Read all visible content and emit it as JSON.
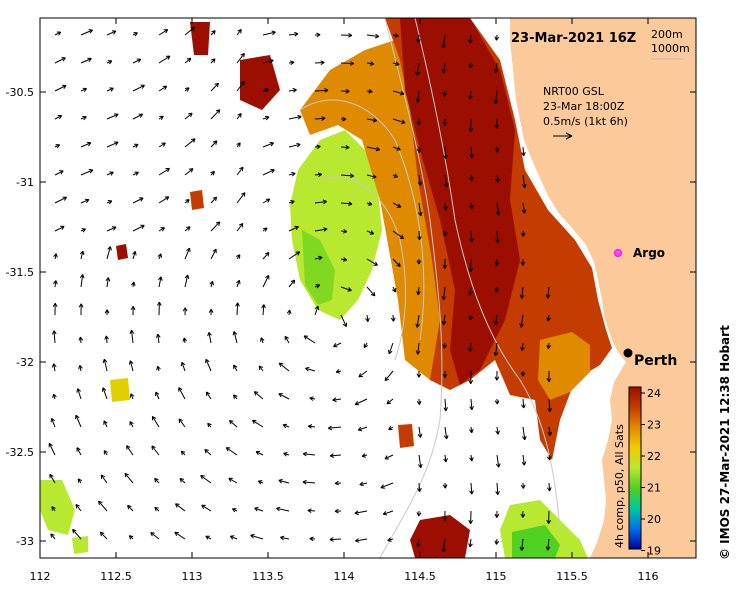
{
  "map": {
    "timestamp": "23-Mar-2021 16Z",
    "bathymetry_legend": [
      "200m",
      "1000m"
    ],
    "current_info": {
      "source": "NRT00 GSL",
      "time": "23-Mar 18:00Z",
      "scale": "0.5m/s (1kt 6h)"
    },
    "x_ticks": [
      "112",
      "112.5",
      "113",
      "113.5",
      "114",
      "114.5",
      "115",
      "115.5",
      "116"
    ],
    "y_ticks": [
      "-30.5",
      "-31",
      "-31.5",
      "-32",
      "-32.5",
      "-33"
    ],
    "places": [
      {
        "name": "Argo",
        "marker": "argo-float",
        "lon": 115.8,
        "lat": -31.4
      },
      {
        "name": "Perth",
        "marker": "city-dot",
        "lon": 115.86,
        "lat": -31.95
      }
    ],
    "colorbar": {
      "label": "4h comp, p50, All Sats",
      "ticks": [
        "24",
        "23",
        "22",
        "21",
        "20",
        "19"
      ],
      "colors": [
        "#9b0e00",
        "#c43c00",
        "#e08a00",
        "#f0cc00",
        "#b8e830",
        "#50d020",
        "#00c8a0",
        "#0070e8",
        "#0000a0"
      ]
    },
    "credit": "© IMOS 27-Mar-2021 12:38 Hobart"
  }
}
